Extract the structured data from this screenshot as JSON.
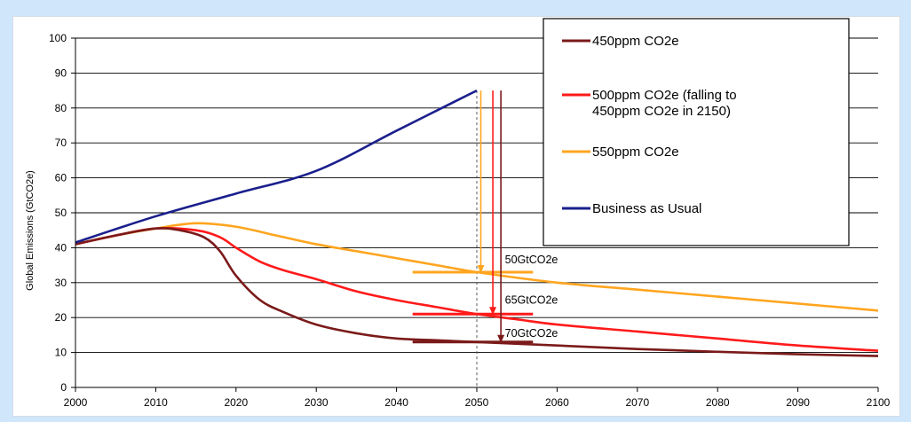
{
  "background_color": "#cfe6fb",
  "chart_data": {
    "type": "line",
    "ylabel": "Global Emissions (GtCO2e)",
    "xlabel": "",
    "xlim": [
      2000,
      2100
    ],
    "ylim": [
      0,
      100
    ],
    "x_ticks": [
      2000,
      2010,
      2020,
      2030,
      2040,
      2050,
      2060,
      2070,
      2080,
      2090,
      2100
    ],
    "y_ticks": [
      0,
      10,
      20,
      30,
      40,
      50,
      60,
      70,
      80,
      90,
      100
    ],
    "grid": "horizontal",
    "legend_position": "top-right",
    "series": [
      {
        "name": "450ppm CO2e",
        "color": "#7b1a1a",
        "x": [
          2000,
          2005,
          2010,
          2013,
          2016,
          2018,
          2020,
          2023,
          2026,
          2030,
          2035,
          2040,
          2045,
          2050,
          2060,
          2070,
          2080,
          2090,
          2100
        ],
        "y": [
          41,
          43.5,
          45.5,
          45,
          43,
          39,
          32,
          25,
          21.5,
          18,
          15.5,
          14,
          13.5,
          13,
          12,
          11,
          10.2,
          9.5,
          9
        ]
      },
      {
        "name": "500ppm CO2e (falling to 450ppm CO2e in 2150)",
        "color": "#ff1a1a",
        "x": [
          2000,
          2005,
          2010,
          2015,
          2018,
          2020,
          2023,
          2026,
          2030,
          2035,
          2040,
          2045,
          2050,
          2055,
          2060,
          2070,
          2080,
          2090,
          2100
        ],
        "y": [
          41,
          43.5,
          45.5,
          45,
          43,
          40,
          36,
          33.5,
          31,
          27.5,
          25,
          23,
          21,
          19.5,
          18,
          16,
          14,
          12,
          10.5
        ]
      },
      {
        "name": "550ppm CO2e",
        "color": "#ffa51f",
        "x": [
          2000,
          2005,
          2010,
          2015,
          2020,
          2025,
          2030,
          2035,
          2040,
          2045,
          2050,
          2060,
          2070,
          2080,
          2090,
          2100
        ],
        "y": [
          41,
          43.5,
          45.5,
          47,
          46,
          43.5,
          41,
          39,
          37,
          35,
          33,
          30,
          28,
          26,
          24,
          22
        ]
      },
      {
        "name": "Business as Usual",
        "color": "#1a1f8c",
        "x": [
          2000,
          2010,
          2020,
          2030,
          2040,
          2050
        ],
        "y": [
          41.5,
          49,
          55.5,
          62,
          73.5,
          85
        ]
      }
    ],
    "annotations": [
      {
        "text": "50GtCO2e",
        "x": 2053.5,
        "y": 35.5
      },
      {
        "text": "65GtCO2e",
        "x": 2053.5,
        "y": 24
      },
      {
        "text": "70GtCO2e",
        "x": 2053.5,
        "y": 14.5
      }
    ],
    "reference_line": {
      "x": 2050,
      "style": "dashed"
    },
    "arrows": [
      {
        "color": "#ffa51f",
        "x": 2050.5,
        "from": 85,
        "to": 33
      },
      {
        "color": "#ff1a1a",
        "x": 2052,
        "from": 85,
        "to": 21
      },
      {
        "color": "#7b1a1a",
        "x": 2053,
        "from": 85,
        "to": 13
      }
    ],
    "levels": [
      {
        "color": "#ffa51f",
        "y": 33,
        "x_from": 2042,
        "x_to": 2057
      },
      {
        "color": "#ff1a1a",
        "y": 21,
        "x_from": 2042,
        "x_to": 2057
      },
      {
        "color": "#7b1a1a",
        "y": 13,
        "x_from": 2042,
        "x_to": 2057
      }
    ]
  },
  "legend": {
    "items": [
      {
        "label": "450ppm CO2e",
        "color": "#7b1a1a"
      },
      {
        "label_line1": "500ppm CO2e (falling to",
        "label_line2": "450ppm CO2e in 2150)",
        "color": "#ff1a1a"
      },
      {
        "label": "550ppm CO2e",
        "color": "#ffa51f"
      },
      {
        "label": "Business as Usual",
        "color": "#1a1f8c"
      }
    ]
  }
}
